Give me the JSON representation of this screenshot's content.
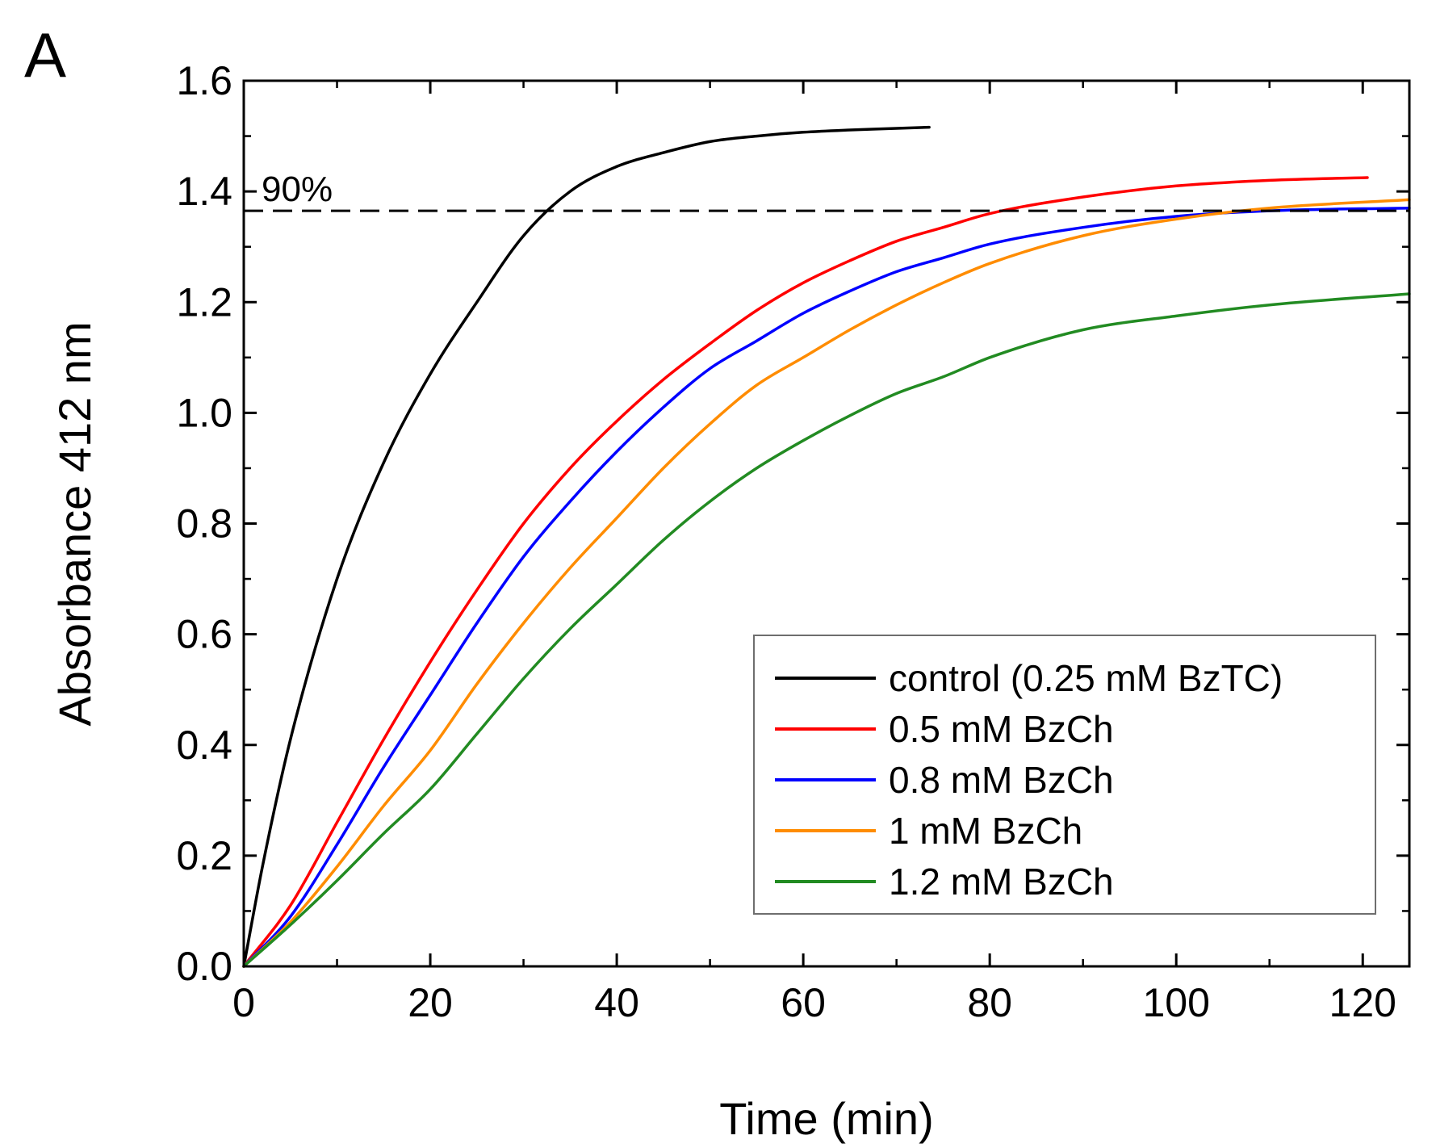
{
  "panel_label": "A",
  "chart_data": {
    "type": "line",
    "title": "",
    "xlabel": "Time (min)",
    "ylabel": "Absorbance 412 nm",
    "xlim": [
      0,
      125
    ],
    "ylim": [
      0.0,
      1.6
    ],
    "xticks": [
      0,
      20,
      40,
      60,
      80,
      100,
      120
    ],
    "xtick_labels": [
      "0",
      "20",
      "40",
      "60",
      "80",
      "100",
      "120"
    ],
    "yticks": [
      0.0,
      0.2,
      0.4,
      0.6,
      0.8,
      1.0,
      1.2,
      1.4,
      1.6
    ],
    "ytick_labels": [
      "0.0",
      "0.2",
      "0.4",
      "0.6",
      "0.8",
      "1.0",
      "1.2",
      "1.4",
      "1.6"
    ],
    "grid": false,
    "legend_position": "lower-right",
    "reference_line": {
      "y": 1.365,
      "style": "dashed",
      "color": "#000000",
      "label": "90%"
    },
    "series": [
      {
        "name": "control (0.25 mM BzTC)",
        "color": "#000000",
        "x": [
          0,
          2,
          5,
          10,
          15,
          20,
          25,
          30,
          35,
          40,
          45,
          50,
          55,
          60,
          65,
          70,
          73.5
        ],
        "y": [
          0.0,
          0.18,
          0.41,
          0.7,
          0.91,
          1.07,
          1.2,
          1.32,
          1.4,
          1.445,
          1.47,
          1.49,
          1.5,
          1.507,
          1.511,
          1.514,
          1.516
        ]
      },
      {
        "name": "0.5 mM BzCh",
        "color": "#ff0000",
        "x": [
          0,
          5,
          10,
          15,
          20,
          25,
          30,
          35,
          40,
          45,
          50,
          55,
          60,
          65,
          70,
          75,
          80,
          90,
          100,
          110,
          120.5
        ],
        "y": [
          0.0,
          0.11,
          0.26,
          0.41,
          0.55,
          0.68,
          0.8,
          0.9,
          0.985,
          1.06,
          1.125,
          1.185,
          1.235,
          1.275,
          1.31,
          1.335,
          1.36,
          1.39,
          1.41,
          1.42,
          1.425
        ]
      },
      {
        "name": "0.8 mM BzCh",
        "color": "#0000ff",
        "x": [
          0,
          5,
          10,
          15,
          20,
          25,
          30,
          35,
          40,
          45,
          50,
          55,
          60,
          65,
          70,
          75,
          80,
          90,
          100,
          110,
          125
        ],
        "y": [
          0.0,
          0.09,
          0.22,
          0.36,
          0.49,
          0.62,
          0.74,
          0.84,
          0.93,
          1.01,
          1.08,
          1.13,
          1.18,
          1.22,
          1.255,
          1.28,
          1.305,
          1.335,
          1.355,
          1.365,
          1.37
        ]
      },
      {
        "name": "1 mM BzCh",
        "color": "#ff8c00",
        "x": [
          0,
          5,
          10,
          15,
          20,
          25,
          30,
          35,
          40,
          45,
          50,
          55,
          60,
          65,
          70,
          75,
          80,
          90,
          100,
          110,
          125
        ],
        "y": [
          0.0,
          0.08,
          0.18,
          0.29,
          0.39,
          0.51,
          0.62,
          0.72,
          0.81,
          0.9,
          0.98,
          1.05,
          1.1,
          1.15,
          1.195,
          1.235,
          1.27,
          1.32,
          1.35,
          1.37,
          1.385
        ]
      },
      {
        "name": "1.2 mM BzCh",
        "color": "#228b22",
        "x": [
          0,
          5,
          10,
          15,
          20,
          25,
          30,
          35,
          40,
          45,
          50,
          55,
          60,
          65,
          70,
          75,
          80,
          90,
          100,
          110,
          125
        ],
        "y": [
          0.0,
          0.075,
          0.155,
          0.24,
          0.32,
          0.42,
          0.52,
          0.61,
          0.69,
          0.77,
          0.84,
          0.9,
          0.95,
          0.995,
          1.035,
          1.065,
          1.1,
          1.15,
          1.175,
          1.195,
          1.215
        ]
      }
    ]
  }
}
